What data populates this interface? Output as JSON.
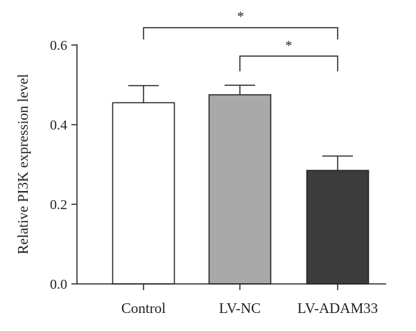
{
  "chart_data": {
    "type": "bar",
    "title": "",
    "xlabel": "",
    "ylabel": "Relative PI3K expression level",
    "ylim": [
      0,
      0.6
    ],
    "yticks": [
      "0.0",
      "0.2",
      "0.4",
      "0.6"
    ],
    "categories": [
      "Control",
      "LV-NC",
      "LV-ADAM33"
    ],
    "values": [
      0.455,
      0.475,
      0.285
    ],
    "errors": [
      0.043,
      0.024,
      0.036
    ],
    "bar_colors": [
      "#ffffff",
      "#a9a9a9",
      "#3c3c3c"
    ],
    "edge_color": "#231f20",
    "grid": false,
    "significance": [
      {
        "from": "Control",
        "to": "LV-ADAM33",
        "label": "*"
      },
      {
        "from": "LV-NC",
        "to": "LV-ADAM33",
        "label": "*"
      }
    ]
  }
}
